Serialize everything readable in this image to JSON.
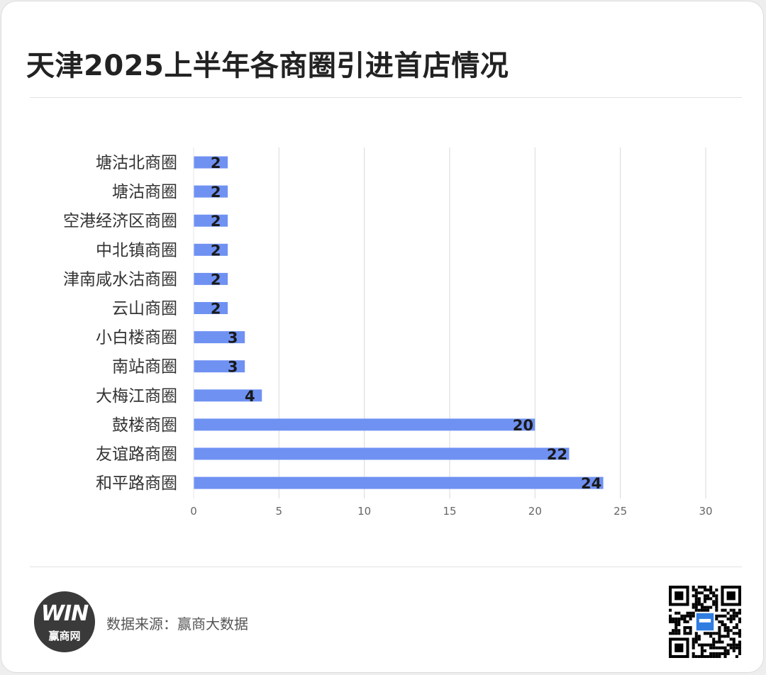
{
  "title": "天津2025上半年各商圈引进首店情况",
  "footer": {
    "source_text": "数据来源：赢商大数据",
    "logo_mark": "WIN",
    "logo_name": "赢商网",
    "qr_code": "qr-code"
  },
  "colors": {
    "bar": "#6f91f2",
    "grid": "#d9d9d9",
    "title": "#222222"
  },
  "chart_data": {
    "type": "bar",
    "orientation": "horizontal",
    "title": "天津2025上半年各商圈引进首店情况",
    "xlabel": "",
    "ylabel": "",
    "categories": [
      "塘沽北商圈",
      "塘沽商圈",
      "空港经济区商圈",
      "中北镇商圈",
      "津南咸水沽商圈",
      "云山商圈",
      "小白楼商圈",
      "南站商圈",
      "大梅江商圈",
      "鼓楼商圈",
      "友谊路商圈",
      "和平路商圈"
    ],
    "values": [
      2,
      2,
      2,
      2,
      2,
      2,
      3,
      3,
      4,
      20,
      22,
      24
    ],
    "xlim": [
      0,
      30
    ],
    "xticks": [
      0,
      5,
      10,
      15,
      20,
      25,
      30
    ],
    "grid": "vertical",
    "legend": "none",
    "data_labels": true
  }
}
